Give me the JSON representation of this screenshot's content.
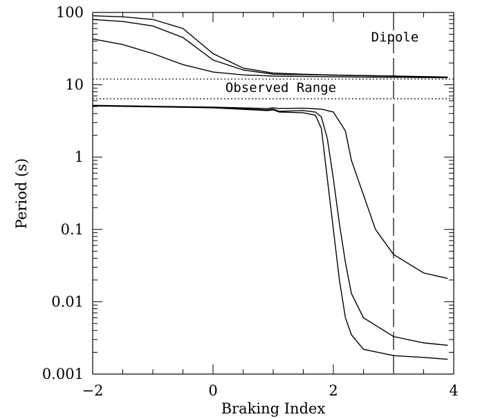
{
  "chart_data": {
    "type": "line",
    "title": "",
    "xlabel": "Braking Index",
    "ylabel": "Period (s)",
    "xlim": [
      -2,
      4
    ],
    "ylim": [
      0.001,
      100
    ],
    "yscale": "log",
    "grid": false,
    "legend": "none",
    "x_ticks": [
      {
        "value": -2,
        "label": "−2"
      },
      {
        "value": 0,
        "label": "0"
      },
      {
        "value": 2,
        "label": "2"
      },
      {
        "value": 4,
        "label": "4"
      }
    ],
    "y_ticks": [
      {
        "value": 0.001,
        "label": "0.001"
      },
      {
        "value": 0.01,
        "label": "0.01"
      },
      {
        "value": 0.1,
        "label": "0.1"
      },
      {
        "value": 1,
        "label": "1"
      },
      {
        "value": 10,
        "label": "10"
      },
      {
        "value": 100,
        "label": "100"
      }
    ],
    "observed_range": {
      "label": "Observed Range",
      "ymin": 6.4,
      "ymax": 12
    },
    "dipole": {
      "label": "Dipole",
      "x": 3
    },
    "series": [
      {
        "x": [
          -2,
          -1.5,
          -1,
          -0.5,
          0,
          0.5,
          1,
          1.5,
          2,
          3,
          3.9
        ],
        "y": [
          90,
          87,
          80,
          60,
          27,
          17,
          14.5,
          14,
          13.6,
          13.2,
          12.8
        ]
      },
      {
        "x": [
          -2,
          -1.5,
          -1,
          -0.5,
          0,
          0.5,
          1,
          1.5,
          2,
          3,
          3.9
        ],
        "y": [
          80,
          75,
          65,
          45,
          22,
          16,
          14,
          13.8,
          13.6,
          13.2,
          12.6
        ]
      },
      {
        "x": [
          -2,
          -1.5,
          -1,
          -0.5,
          0,
          0.5,
          1,
          2,
          3,
          3.9
        ],
        "y": [
          43,
          36,
          27,
          19,
          15,
          13.7,
          13.2,
          12.9,
          12.7,
          12.5
        ]
      },
      {
        "x": [
          -2,
          -1,
          0,
          0.9,
          1,
          1.1,
          1.5,
          1.8,
          2,
          2.2,
          2.3,
          2.5,
          2.7,
          3,
          3.5,
          3.9
        ],
        "y": [
          5.2,
          5.05,
          4.9,
          4.7,
          4.8,
          4.7,
          4.75,
          4.6,
          4.2,
          2.3,
          0.9,
          0.3,
          0.1,
          0.045,
          0.025,
          0.021
        ]
      },
      {
        "x": [
          -2,
          -1,
          0,
          0.9,
          1,
          1.1,
          1.5,
          1.7,
          1.8,
          1.9,
          2,
          2.1,
          2.2,
          2.3,
          2.5,
          3,
          3.5,
          3.9
        ],
        "y": [
          5.15,
          5.0,
          4.85,
          4.5,
          4.6,
          4.3,
          4.4,
          4.2,
          3.6,
          1.8,
          0.5,
          0.12,
          0.035,
          0.013,
          0.006,
          0.0033,
          0.0027,
          0.0025
        ]
      },
      {
        "x": [
          -2,
          -1,
          0,
          0.9,
          1,
          1.1,
          1.5,
          1.7,
          1.8,
          1.9,
          2,
          2.1,
          2.2,
          2.3,
          2.5,
          3,
          3.5,
          3.9
        ],
        "y": [
          5.1,
          4.95,
          4.8,
          4.4,
          4.5,
          4.2,
          4.1,
          3.8,
          2.5,
          0.5,
          0.1,
          0.02,
          0.006,
          0.0035,
          0.0022,
          0.0018,
          0.0017,
          0.0016
        ]
      }
    ]
  }
}
